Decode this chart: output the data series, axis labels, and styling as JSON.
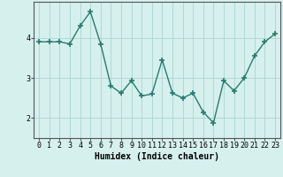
{
  "x": [
    0,
    1,
    2,
    3,
    4,
    5,
    6,
    7,
    8,
    9,
    10,
    11,
    12,
    13,
    14,
    15,
    16,
    17,
    18,
    19,
    20,
    21,
    22,
    23
  ],
  "y": [
    3.9,
    3.9,
    3.9,
    3.85,
    4.3,
    4.65,
    3.85,
    2.8,
    2.62,
    2.93,
    2.55,
    2.6,
    3.45,
    2.62,
    2.5,
    2.62,
    2.15,
    1.88,
    2.93,
    2.68,
    3.0,
    3.55,
    3.9,
    4.1
  ],
  "line_color": "#2a7a6e",
  "marker": "+",
  "marker_size": 4,
  "marker_lw": 1.2,
  "xlabel": "Humidex (Indice chaleur)",
  "xlim": [
    -0.5,
    23.5
  ],
  "ylim": [
    1.5,
    4.9
  ],
  "yticks": [
    2,
    3,
    4
  ],
  "xticks": [
    0,
    1,
    2,
    3,
    4,
    5,
    6,
    7,
    8,
    9,
    10,
    11,
    12,
    13,
    14,
    15,
    16,
    17,
    18,
    19,
    20,
    21,
    22,
    23
  ],
  "bg_color": "#d6f0ee",
  "grid_color": "#b0d8d4",
  "xlabel_fontsize": 7,
  "tick_fontsize": 6,
  "line_width": 1.0
}
